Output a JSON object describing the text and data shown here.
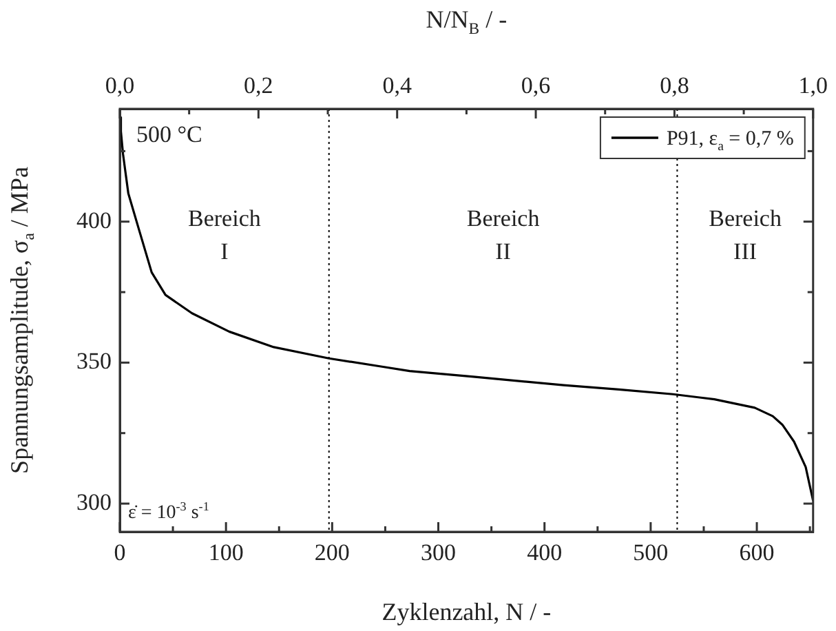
{
  "chart_data": {
    "type": "line",
    "xlabel": "Zyklenzahl, N / -",
    "ylabel": "Spannungsamplitude, σ$_{a}$ / MPa",
    "x2label": "N/N$_{B}$ / -",
    "x": [
      0,
      1,
      3,
      8,
      17,
      30,
      43,
      68,
      103,
      145,
      197,
      248,
      273,
      333,
      418,
      470,
      521,
      560,
      598,
      615,
      624,
      635,
      646,
      653
    ],
    "series": [
      {
        "name": "P91, ε$_{a}$ = 0,7 %",
        "color": "#000000",
        "values": [
          437,
          432,
          424,
          410,
          398.5,
          382,
          374,
          367.5,
          361,
          355.5,
          351.5,
          348.5,
          347,
          345,
          342,
          340.5,
          338.8,
          337,
          334,
          331,
          328,
          322,
          313,
          301
        ]
      }
    ],
    "xlim": [
      0,
      653
    ],
    "xticks": [
      0,
      {
        "value": 50,
        "label": null
      },
      100,
      {
        "value": 150,
        "label": null
      },
      200,
      {
        "value": 250,
        "label": null
      },
      300,
      {
        "value": 350,
        "label": null
      },
      400,
      {
        "value": 450,
        "label": null
      },
      500,
      {
        "value": 550,
        "label": null
      },
      600,
      {
        "value": 650,
        "label": null
      }
    ],
    "ylim": [
      290,
      440
    ],
    "yticks": [
      300,
      {
        "value": 325,
        "label": null
      },
      350,
      {
        "value": 375,
        "label": null
      },
      400,
      {
        "value": 425,
        "label": null
      }
    ],
    "x2lim": [
      0,
      1
    ],
    "x2ticks": [
      {
        "value": 0,
        "label": "0,0"
      },
      {
        "value": 0.1,
        "label": null
      },
      {
        "value": 0.2,
        "label": "0,2"
      },
      {
        "value": 0.3,
        "label": null
      },
      {
        "value": 0.4,
        "label": "0,4"
      },
      {
        "value": 0.5,
        "label": null
      },
      {
        "value": 0.6,
        "label": "0,6"
      },
      {
        "value": 0.7,
        "label": null
      },
      {
        "value": 0.8,
        "label": "0,8"
      },
      {
        "value": 0.9,
        "label": null
      },
      {
        "value": 1,
        "label": "1,0"
      }
    ],
    "ref_lines": [
      {
        "axis": "x",
        "value": 197,
        "color": "#000000",
        "line_style": "dotted"
      },
      {
        "axis": "x",
        "value": 525,
        "color": "#000000",
        "line_style": "dotted"
      }
    ],
    "annotations": [
      "500 °C",
      "Bereich\nI",
      "Bereich\nII",
      "Bereich\nIII",
      "ε̇ = 10$^{-3}$ s$^{-1}$"
    ],
    "legend": "top right",
    "grid": false,
    "marker": "none",
    "line_style": "solid"
  }
}
